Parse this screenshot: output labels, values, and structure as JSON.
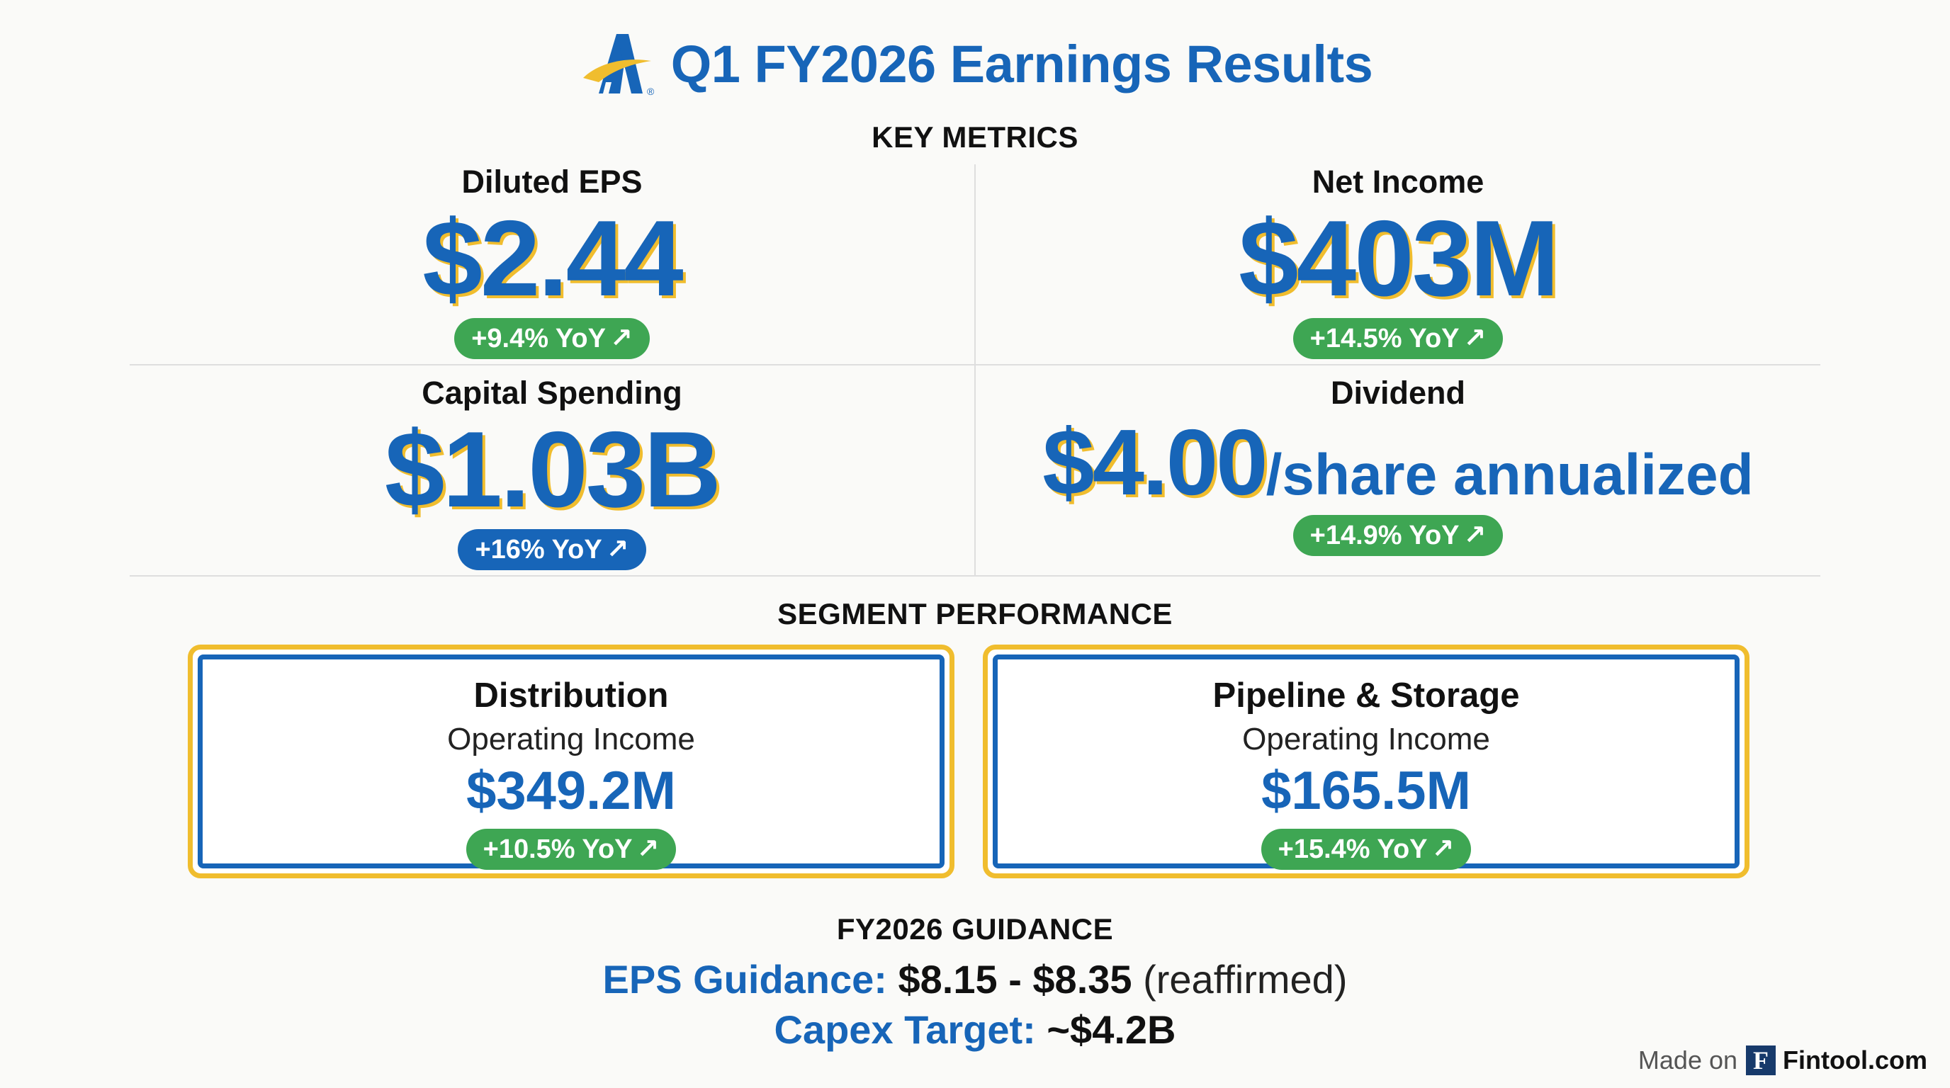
{
  "header": {
    "title": "Q1 FY2026 Earnings Results",
    "logo_icon": "company-a-logo",
    "colors": {
      "brand_blue": "#1765b8",
      "brand_gold": "#f0bd2e",
      "positive_green": "#3ea653"
    }
  },
  "key_metrics": {
    "section_title": "KEY METRICS",
    "items": [
      {
        "label": "Diluted EPS",
        "value": "$2.44",
        "change": "+9.4% YoY",
        "arrow": "↗"
      },
      {
        "label": "Net Income",
        "value": "$403M",
        "change": "+14.5% YoY",
        "arrow": "↗"
      },
      {
        "label": "Capital Spending",
        "value": "$1.03B",
        "change": "+16% YoY",
        "arrow": "↗"
      },
      {
        "label": "Dividend",
        "value": "$4.00",
        "suffix": "/share annualized",
        "change": "+14.9% YoY",
        "arrow": "↗"
      }
    ]
  },
  "segments": {
    "section_title": "SEGMENT PERFORMANCE",
    "items": [
      {
        "title": "Distribution",
        "subtitle": "Operating Income",
        "value": "$349.2M",
        "change": "+10.5% YoY",
        "arrow": "↗"
      },
      {
        "title": "Pipeline & Storage",
        "subtitle": "Operating Income",
        "value": "$165.5M",
        "change": "+15.4% YoY",
        "arrow": "↗"
      }
    ]
  },
  "guidance": {
    "section_title": "FY2026 GUIDANCE",
    "eps_label": "EPS Guidance:",
    "eps_value": "$8.15 - $8.35",
    "eps_note": "(reaffirmed)",
    "capex_label": "Capex Target:",
    "capex_value": "~$4.2B"
  },
  "footer": {
    "made_on": "Made on",
    "logo_letter": "F",
    "brand": "Fintool.com"
  }
}
